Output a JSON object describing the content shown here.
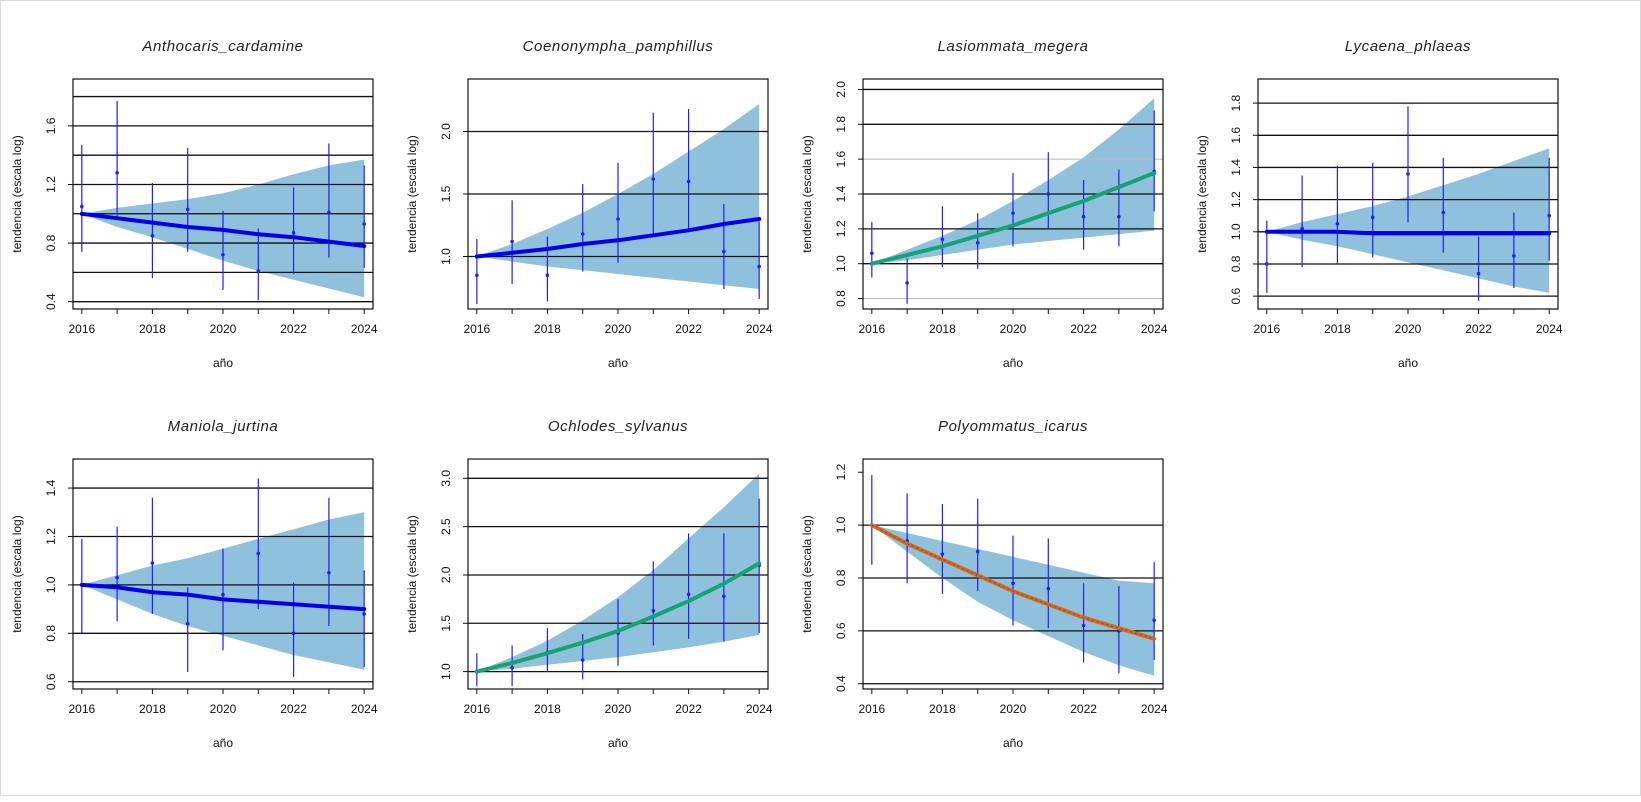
{
  "figure": {
    "colors": {
      "band": "#8fc1dc",
      "points": "#1e1eff",
      "neutral": "#0000ee",
      "increase": "#16a374",
      "decrease": "#d2691e",
      "grid": "#111111"
    }
  },
  "chart_data": [
    {
      "type": "line",
      "title": "Anthocaris_cardamine",
      "xlabel": "año",
      "ylabel": "tendencia (escala log)",
      "ylim": [
        0.35,
        1.92
      ],
      "yticks": [
        0.4,
        0.8,
        1.2,
        1.6
      ],
      "ygrid": [
        0.4,
        0.6,
        0.8,
        1.0,
        1.2,
        1.4,
        1.6,
        1.8
      ],
      "trend_color": "neutral",
      "x": [
        2016,
        2017,
        2018,
        2019,
        2020,
        2021,
        2022,
        2023,
        2024
      ],
      "trend": [
        1.0,
        0.97,
        0.94,
        0.91,
        0.89,
        0.86,
        0.84,
        0.81,
        0.78
      ],
      "band_lower": [
        1.0,
        0.91,
        0.84,
        0.76,
        0.68,
        0.61,
        0.55,
        0.49,
        0.43
      ],
      "band_upper": [
        1.0,
        1.04,
        1.07,
        1.1,
        1.14,
        1.2,
        1.27,
        1.33,
        1.37
      ],
      "points": [
        1.05,
        1.28,
        0.85,
        1.03,
        0.72,
        0.61,
        0.87,
        1.01,
        0.93
      ],
      "ci_lower": [
        0.74,
        0.98,
        0.56,
        0.74,
        0.48,
        0.41,
        0.59,
        0.7,
        0.63
      ],
      "ci_upper": [
        1.47,
        1.77,
        1.21,
        1.45,
        1.02,
        0.9,
        1.18,
        1.48,
        1.33
      ]
    },
    {
      "type": "line",
      "title": "Coenonympha_pamphillus",
      "xlabel": "año",
      "ylabel": "tendencia (escala log)",
      "ylim": [
        0.58,
        2.42
      ],
      "yticks": [
        1.0,
        1.5,
        2.0
      ],
      "ygrid": [
        1.0,
        1.5,
        2.0
      ],
      "trend_color": "neutral",
      "x": [
        2016,
        2017,
        2018,
        2019,
        2020,
        2021,
        2022,
        2023,
        2024
      ],
      "trend": [
        1.0,
        1.03,
        1.06,
        1.1,
        1.13,
        1.17,
        1.21,
        1.26,
        1.3
      ],
      "band_lower": [
        1.0,
        0.96,
        0.92,
        0.89,
        0.86,
        0.83,
        0.8,
        0.77,
        0.74
      ],
      "band_upper": [
        1.0,
        1.1,
        1.22,
        1.35,
        1.5,
        1.66,
        1.84,
        2.02,
        2.22
      ],
      "points": [
        0.85,
        1.12,
        0.85,
        1.18,
        1.3,
        1.62,
        1.6,
        1.04,
        0.92
      ],
      "ci_lower": [
        0.62,
        0.78,
        0.64,
        0.88,
        0.95,
        1.18,
        1.2,
        0.74,
        0.66
      ],
      "ci_upper": [
        1.14,
        1.45,
        1.16,
        1.58,
        1.75,
        2.15,
        2.18,
        1.42,
        1.28
      ]
    },
    {
      "type": "line",
      "title": "Lasiommata_megera",
      "xlabel": "año",
      "ylabel": "tendencia (escala log)",
      "ylim": [
        0.74,
        2.06
      ],
      "yticks": [
        0.8,
        1.0,
        1.2,
        1.4,
        1.6,
        1.8,
        2.0
      ],
      "ygrid": [
        1.0,
        1.2,
        1.4,
        1.8,
        2.0
      ],
      "ygrid_light": [
        0.8,
        1.6
      ],
      "trend_color": "increase",
      "x": [
        2016,
        2017,
        2018,
        2019,
        2020,
        2021,
        2022,
        2023,
        2024
      ],
      "trend": [
        1.0,
        1.05,
        1.1,
        1.16,
        1.22,
        1.29,
        1.36,
        1.44,
        1.52
      ],
      "band_lower": [
        1.0,
        1.02,
        1.05,
        1.08,
        1.11,
        1.13,
        1.15,
        1.17,
        1.19
      ],
      "band_upper": [
        1.0,
        1.08,
        1.16,
        1.25,
        1.36,
        1.48,
        1.61,
        1.77,
        1.95
      ],
      "points": [
        1.06,
        0.89,
        1.14,
        1.12,
        1.29,
        1.4,
        1.27,
        1.27,
        1.53
      ],
      "ci_lower": [
        0.92,
        0.77,
        0.98,
        0.97,
        1.1,
        1.2,
        1.08,
        1.1,
        1.3
      ],
      "ci_upper": [
        1.24,
        1.03,
        1.33,
        1.29,
        1.52,
        1.64,
        1.48,
        1.54,
        1.88
      ]
    },
    {
      "type": "line",
      "title": "Lycaena_phlaeas",
      "xlabel": "año",
      "ylabel": "tendencia (escala log)",
      "ylim": [
        0.52,
        1.95
      ],
      "yticks": [
        0.6,
        0.8,
        1.0,
        1.2,
        1.4,
        1.6,
        1.8
      ],
      "ygrid": [
        0.6,
        0.8,
        1.0,
        1.2,
        1.4,
        1.6,
        1.8
      ],
      "trend_color": "neutral",
      "x": [
        2016,
        2017,
        2018,
        2019,
        2020,
        2021,
        2022,
        2023,
        2024
      ],
      "trend": [
        1.0,
        1.0,
        1.0,
        0.99,
        0.99,
        0.99,
        0.99,
        0.99,
        0.99
      ],
      "band_lower": [
        1.0,
        0.95,
        0.91,
        0.86,
        0.81,
        0.76,
        0.71,
        0.66,
        0.62
      ],
      "band_upper": [
        1.0,
        1.06,
        1.11,
        1.16,
        1.22,
        1.29,
        1.36,
        1.44,
        1.52
      ],
      "points": [
        0.8,
        1.02,
        1.05,
        1.09,
        1.36,
        1.12,
        0.74,
        0.85,
        1.1
      ],
      "ci_lower": [
        0.62,
        0.78,
        0.8,
        0.84,
        1.06,
        0.87,
        0.57,
        0.65,
        0.82
      ],
      "ci_upper": [
        1.07,
        1.35,
        1.41,
        1.43,
        1.78,
        1.46,
        0.97,
        1.12,
        1.46
      ]
    },
    {
      "type": "line",
      "title": "Maniola_jurtina",
      "xlabel": "año",
      "ylabel": "tendencia (escala log)",
      "ylim": [
        0.57,
        1.52
      ],
      "yticks": [
        0.6,
        0.8,
        1.0,
        1.2,
        1.4
      ],
      "ygrid": [
        0.6,
        0.8,
        1.0,
        1.2,
        1.4
      ],
      "trend_color": "neutral",
      "x": [
        2016,
        2017,
        2018,
        2019,
        2020,
        2021,
        2022,
        2023,
        2024
      ],
      "trend": [
        1.0,
        0.99,
        0.97,
        0.96,
        0.94,
        0.93,
        0.92,
        0.91,
        0.9
      ],
      "band_lower": [
        1.0,
        0.94,
        0.88,
        0.83,
        0.79,
        0.75,
        0.71,
        0.68,
        0.65
      ],
      "band_upper": [
        1.0,
        1.04,
        1.08,
        1.11,
        1.15,
        1.19,
        1.23,
        1.27,
        1.3
      ],
      "points": [
        1.0,
        1.03,
        1.09,
        0.84,
        0.96,
        1.13,
        0.8,
        1.05,
        0.88
      ],
      "ci_lower": [
        0.8,
        0.85,
        0.88,
        0.64,
        0.73,
        0.9,
        0.62,
        0.83,
        0.66
      ],
      "ci_upper": [
        1.19,
        1.24,
        1.36,
        0.99,
        1.15,
        1.44,
        1.01,
        1.36,
        1.06
      ]
    },
    {
      "type": "line",
      "title": "Ochlodes_sylvanus",
      "xlabel": "año",
      "ylabel": "tendencia (escala log)",
      "ylim": [
        0.82,
        3.2
      ],
      "yticks": [
        1.0,
        1.5,
        2.0,
        2.5,
        3.0
      ],
      "ygrid": [
        1.0,
        1.5,
        2.0,
        2.5,
        3.0
      ],
      "trend_color": "increase",
      "x": [
        2016,
        2017,
        2018,
        2019,
        2020,
        2021,
        2022,
        2023,
        2024
      ],
      "trend": [
        1.0,
        1.09,
        1.19,
        1.3,
        1.42,
        1.57,
        1.73,
        1.91,
        2.12
      ],
      "band_lower": [
        1.0,
        1.03,
        1.07,
        1.11,
        1.15,
        1.2,
        1.25,
        1.31,
        1.38
      ],
      "band_upper": [
        1.0,
        1.15,
        1.32,
        1.53,
        1.77,
        2.05,
        2.38,
        2.7,
        3.05
      ],
      "points": [
        1.0,
        1.04,
        1.2,
        1.12,
        1.4,
        1.63,
        1.8,
        1.78,
        2.1
      ],
      "ci_lower": [
        0.85,
        0.85,
        1.0,
        0.92,
        1.06,
        1.27,
        1.34,
        1.31,
        1.4
      ],
      "ci_upper": [
        1.19,
        1.27,
        1.45,
        1.39,
        1.75,
        2.14,
        2.43,
        2.43,
        2.79
      ]
    },
    {
      "type": "line",
      "title": "Polyommatus_icarus",
      "xlabel": "año",
      "ylabel": "tendencia (escala log)",
      "ylim": [
        0.38,
        1.25
      ],
      "yticks": [
        0.4,
        0.6,
        0.8,
        1.0,
        1.2
      ],
      "ygrid": [
        0.4,
        0.6,
        0.8,
        1.0
      ],
      "trend_color": "decrease",
      "x": [
        2016,
        2017,
        2018,
        2019,
        2020,
        2021,
        2022,
        2023,
        2024
      ],
      "trend": [
        1.0,
        0.93,
        0.87,
        0.81,
        0.75,
        0.7,
        0.65,
        0.61,
        0.57
      ],
      "band_lower": [
        1.0,
        0.9,
        0.8,
        0.71,
        0.64,
        0.58,
        0.52,
        0.47,
        0.43
      ],
      "band_upper": [
        1.0,
        0.97,
        0.94,
        0.91,
        0.88,
        0.85,
        0.82,
        0.79,
        0.78
      ],
      "points": [
        1.0,
        0.94,
        0.89,
        0.9,
        0.78,
        0.76,
        0.62,
        0.6,
        0.64
      ],
      "ci_lower": [
        0.85,
        0.78,
        0.74,
        0.75,
        0.62,
        0.61,
        0.48,
        0.44,
        0.49
      ],
      "ci_upper": [
        1.19,
        1.12,
        1.08,
        1.1,
        0.96,
        0.95,
        0.78,
        0.77,
        0.86
      ]
    }
  ]
}
